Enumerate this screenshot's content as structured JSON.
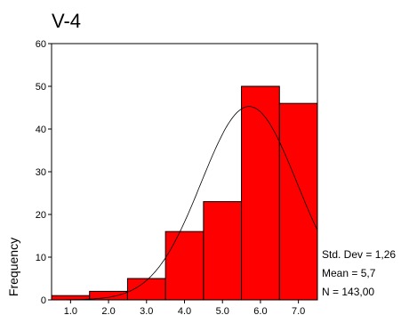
{
  "chart_data": {
    "type": "bar",
    "title": "V-4",
    "xlabel": "",
    "ylabel": "Frequency",
    "x_ticks": [
      "1.0",
      "2.0",
      "3.0",
      "4.0",
      "5.0",
      "6.0",
      "7.0"
    ],
    "bins": [
      {
        "center": 1.0,
        "value": 1
      },
      {
        "center": 2.0,
        "value": 2
      },
      {
        "center": 3.0,
        "value": 5
      },
      {
        "center": 4.0,
        "value": 16
      },
      {
        "center": 5.0,
        "value": 23
      },
      {
        "center": 6.0,
        "value": 50
      },
      {
        "center": 7.0,
        "value": 46
      }
    ],
    "y_ticks": [
      "0",
      "10",
      "20",
      "30",
      "40",
      "50",
      "60"
    ],
    "xlim": [
      0.5,
      7.5
    ],
    "ylim": [
      0,
      60
    ],
    "bar_color": "#ff0000",
    "normal_curve": {
      "mean": 5.7,
      "std_dev": 1.26,
      "n": 143
    },
    "stats": {
      "std_dev": "Std. Dev = 1,26",
      "mean": "Mean = 5,7",
      "n": "N = 143,00"
    }
  }
}
